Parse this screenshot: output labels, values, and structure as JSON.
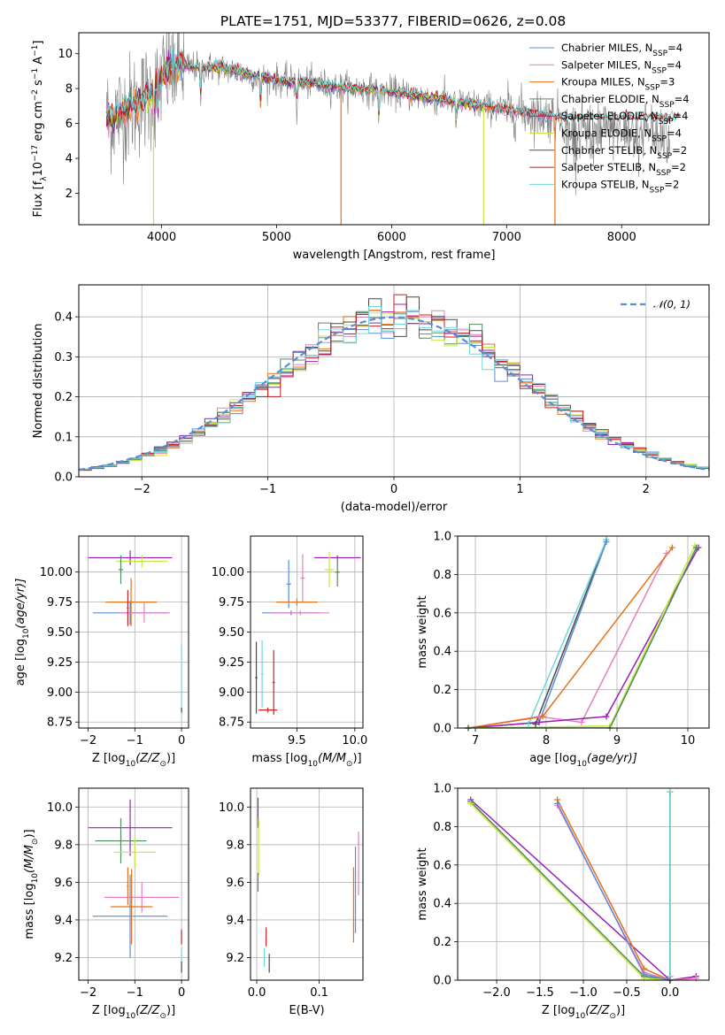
{
  "title": "PLATE=1751, MJD=53377, FIBERID=0626, z=0.08",
  "colors": {
    "chabrier_miles": "#5b8bd9",
    "salpeter_miles": "#e77fbf",
    "kroupa_miles": "#e8701a",
    "chabrier_elodie": "#4e8a5f",
    "salpeter_elodie": "#9b1fb5",
    "kroupa_elodie": "#c7e83a",
    "chabrier_stelib": "#4a4a4a",
    "salpeter_stelib": "#cc1f1f",
    "kroupa_stelib": "#6fd8d8",
    "normal_curve": "#5b8bd9"
  },
  "chart_data": [
    {
      "id": "spectrum",
      "type": "line",
      "xlabel": "wavelength [Angstrom, rest frame]",
      "ylabel": "Flux [f_λ 10^-17 erg cm^-2 s^-1 A^-1]",
      "ylabel_parts": {
        "a": "Flux [f",
        "b": "λ",
        "c": "10",
        "d": "−17",
        "e": " erg cm",
        "f": "−2",
        "g": " s",
        "h": "−1",
        "i": " A",
        "j": "−1",
        "k": "]"
      },
      "xlim": [
        3280,
        8760
      ],
      "ylim": [
        0.2,
        11.2
      ],
      "xticks": [
        4000,
        5000,
        6000,
        7000,
        8000
      ],
      "yticks": [
        2,
        4,
        6,
        8,
        10
      ],
      "grid": false,
      "legend_position": "top-right",
      "legend": [
        {
          "label": "Chabrier MILES, N",
          "sub": "SSP",
          "suffix": "=4",
          "color_key": "chabrier_miles"
        },
        {
          "label": "Salpeter MILES, N",
          "sub": "SSP",
          "suffix": "=4",
          "color_key": "salpeter_miles"
        },
        {
          "label": "Kroupa MILES, N",
          "sub": "SSP",
          "suffix": "=3",
          "color_key": "kroupa_miles"
        },
        {
          "label": "Chabrier ELODIE, N",
          "sub": "SSP",
          "suffix": "=4",
          "color_key": "chabrier_elodie"
        },
        {
          "label": "Salpeter ELODIE, N",
          "sub": "SSP",
          "suffix": "=4",
          "color_key": "salpeter_elodie"
        },
        {
          "label": "Kroupa ELODIE, N",
          "sub": "SSP",
          "suffix": "=4",
          "color_key": "kroupa_elodie"
        },
        {
          "label": "Chabrier STELIB, N",
          "sub": "SSP",
          "suffix": "=2",
          "color_key": "chabrier_stelib"
        },
        {
          "label": "Salpeter STELIB, N",
          "sub": "SSP",
          "suffix": "=2",
          "color_key": "salpeter_stelib"
        },
        {
          "label": "Kroupa STELIB, N",
          "sub": "SSP",
          "suffix": "=2",
          "color_key": "kroupa_stelib"
        }
      ],
      "continuum": [
        [
          3500,
          6.2
        ],
        [
          3700,
          6.8
        ],
        [
          3900,
          7.6
        ],
        [
          4000,
          8.6
        ],
        [
          4100,
          9.4
        ],
        [
          4300,
          9.2
        ],
        [
          4500,
          9.2
        ],
        [
          4700,
          8.9
        ],
        [
          4900,
          8.6
        ],
        [
          5100,
          8.4
        ],
        [
          5300,
          8.3
        ],
        [
          5500,
          8.1
        ],
        [
          5700,
          8.0
        ],
        [
          5900,
          7.9
        ],
        [
          6100,
          7.7
        ],
        [
          6300,
          7.5
        ],
        [
          6500,
          7.3
        ],
        [
          6700,
          7.1
        ],
        [
          6900,
          6.9
        ],
        [
          7100,
          6.7
        ],
        [
          7300,
          6.5
        ],
        [
          7500,
          6.3
        ]
      ],
      "dips": [
        {
          "x": 3930,
          "y": 0.2,
          "color_key": "kroupa_elodie"
        },
        {
          "x": 5560,
          "y": 0.2,
          "color_key": "kroupa_miles"
        },
        {
          "x": 6800,
          "y": 0.2,
          "color_key": "kroupa_elodie"
        },
        {
          "x": 7420,
          "y": 0.2,
          "color_key": "kroupa_miles"
        }
      ]
    },
    {
      "id": "residuals",
      "type": "line",
      "xlabel": "(data-model)/error",
      "ylabel": "Normed distribution",
      "xlim": [
        -2.5,
        2.5
      ],
      "ylim": [
        0,
        0.48
      ],
      "xticks": [
        -2,
        -1,
        0,
        1,
        2
      ],
      "yticks": [
        0.0,
        0.1,
        0.2,
        0.3,
        0.4
      ],
      "grid": true,
      "legend_position": "top-right",
      "legend_label": "𝒩(0, 1)",
      "bin_width": 0.1,
      "bin_start": -2.5
    },
    {
      "id": "age_vs_z",
      "type": "scatter",
      "xlabel": "Z [log10(Z/Z⊙)]",
      "xlabel_parts": {
        "a": "Z [log",
        "b": "10",
        "c": "(Z/Z",
        "d": "⊙",
        "e": ")]"
      },
      "ylabel": "age [log10(age/yr)]",
      "ylabel_parts": {
        "a": "age  [log",
        "b": "10",
        "c": "(age/yr)]"
      },
      "xlim": [
        -2.2,
        0.15
      ],
      "ylim": [
        8.7,
        10.3
      ],
      "xticks": [
        -2,
        -1,
        0
      ],
      "yticks": [
        8.75,
        9.0,
        9.25,
        9.5,
        9.75,
        10.0
      ],
      "ytick_labels": [
        "8.75",
        "9.00",
        "9.25",
        "9.50",
        "9.75",
        "10.00"
      ],
      "grid": true,
      "points": [
        {
          "x": -1.1,
          "y": 10.12,
          "xerr": 0.9,
          "yerr": 0.06,
          "color_key": "salpeter_elodie"
        },
        {
          "x": -0.85,
          "y": 10.09,
          "xerr": 0.55,
          "yerr": 0.05,
          "color_key": "kroupa_elodie"
        },
        {
          "x": -1.3,
          "y": 10.02,
          "xerr": 0.05,
          "yerr": 0.12,
          "color_key": "chabrier_elodie"
        },
        {
          "x": -1.08,
          "y": 9.75,
          "xerr": 0.55,
          "yerr": 0.2,
          "color_key": "kroupa_miles"
        },
        {
          "x": -1.1,
          "y": 9.66,
          "xerr": 0.8,
          "yerr": 0.1,
          "color_key": "chabrier_miles"
        },
        {
          "x": -0.8,
          "y": 9.66,
          "xerr": 0.55,
          "yerr": 0.08,
          "color_key": "salpeter_miles"
        },
        {
          "x": -1.15,
          "y": 9.7,
          "xerr": 0.02,
          "yerr": 0.15,
          "color_key": "salpeter_stelib"
        },
        {
          "x": 0.0,
          "y": 9.1,
          "xerr": 0.01,
          "yerr": 0.3,
          "color_key": "kroupa_stelib"
        },
        {
          "x": 0.0,
          "y": 8.85,
          "xerr": 0.01,
          "yerr": 0.02,
          "color_key": "chabrier_stelib"
        }
      ]
    },
    {
      "id": "age_vs_mass",
      "type": "scatter",
      "xlabel": "mass [log10(M/M⊙)]",
      "xlabel_parts": {
        "a": "mass [log",
        "b": "10",
        "c": "(M/M",
        "d": "⊙",
        "e": ")]"
      },
      "xlim": [
        9.1,
        10.07
      ],
      "ylim": [
        8.7,
        10.3
      ],
      "xticks": [
        9.5,
        10.0
      ],
      "xtick_labels": [
        "9.5",
        "10.0"
      ],
      "yticks": [
        8.75,
        9.0,
        9.25,
        9.5,
        9.75,
        10.0
      ],
      "ytick_labels": [
        "8.75",
        "9.00",
        "9.25",
        "9.50",
        "9.75",
        "10.00"
      ],
      "grid": true,
      "points": [
        {
          "x": 9.85,
          "y": 10.12,
          "xerr": 0.2,
          "yerr": 0.02,
          "color_key": "salpeter_elodie"
        },
        {
          "x": 9.78,
          "y": 10.02,
          "xerr": 0.04,
          "yerr": 0.15,
          "color_key": "kroupa_elodie"
        },
        {
          "x": 9.85,
          "y": 10.0,
          "xerr": 0.02,
          "yerr": 0.12,
          "color_key": "chabrier_elodie"
        },
        {
          "x": 9.43,
          "y": 9.9,
          "xerr": 0.02,
          "yerr": 0.2,
          "color_key": "chabrier_miles"
        },
        {
          "x": 9.55,
          "y": 9.95,
          "xerr": 0.02,
          "yerr": 0.2,
          "color_key": "salpeter_miles"
        },
        {
          "x": 9.5,
          "y": 9.75,
          "xerr": 0.18,
          "yerr": 0.03,
          "color_key": "kroupa_miles"
        },
        {
          "x": 9.45,
          "y": 9.66,
          "xerr": 0.25,
          "yerr": 0.02,
          "color_key": "chabrier_miles"
        },
        {
          "x": 9.53,
          "y": 9.66,
          "xerr": 0.25,
          "yerr": 0.02,
          "color_key": "salpeter_miles"
        },
        {
          "x": 9.3,
          "y": 9.08,
          "xerr": 0.01,
          "yerr": 0.27,
          "color_key": "salpeter_stelib"
        },
        {
          "x": 9.2,
          "y": 9.15,
          "xerr": 0.01,
          "yerr": 0.28,
          "color_key": "kroupa_stelib"
        },
        {
          "x": 9.15,
          "y": 9.12,
          "xerr": 0.01,
          "yerr": 0.3,
          "color_key": "chabrier_stelib"
        },
        {
          "x": 9.25,
          "y": 8.85,
          "xerr": 0.08,
          "yerr": 0.02,
          "color_key": "salpeter_stelib"
        }
      ]
    },
    {
      "id": "weight_vs_age",
      "type": "line",
      "xlabel": "age [log10(age/yr)]",
      "xlabel_parts": {
        "a": "age  [log",
        "b": "10",
        "c": "(age/yr)]"
      },
      "ylabel": "mass weight",
      "xlim": [
        6.75,
        10.3
      ],
      "ylim": [
        0.0,
        1.0
      ],
      "xticks": [
        7,
        8,
        9,
        10
      ],
      "yticks": [
        0.0,
        0.2,
        0.4,
        0.6,
        0.8,
        1.0
      ],
      "ytick_labels": [
        "0.0",
        "0.2",
        "0.4",
        "0.6",
        "0.8",
        "1.0"
      ],
      "grid": true,
      "series": [
        {
          "color_key": "chabrier_stelib",
          "x": [
            7.85,
            8.85
          ],
          "y": [
            0.02,
            0.98
          ]
        },
        {
          "color_key": "kroupa_stelib",
          "x": [
            7.75,
            8.85
          ],
          "y": [
            0.02,
            0.98
          ]
        },
        {
          "color_key": "chabrier_miles",
          "x": [
            6.9,
            7.9,
            8.85
          ],
          "y": [
            0.0,
            0.03,
            0.97
          ]
        },
        {
          "color_key": "salpeter_miles",
          "x": [
            6.9,
            7.9,
            8.5,
            9.7
          ],
          "y": [
            0.0,
            0.06,
            0.03,
            0.91
          ]
        },
        {
          "color_key": "kroupa_miles",
          "x": [
            6.9,
            7.95,
            9.78
          ],
          "y": [
            0.0,
            0.06,
            0.94
          ]
        },
        {
          "color_key": "salpeter_elodie",
          "x": [
            6.9,
            7.9,
            8.85,
            10.15
          ],
          "y": [
            0.0,
            0.03,
            0.06,
            0.94
          ]
        },
        {
          "color_key": "kroupa_elodie",
          "x": [
            6.9,
            8.9,
            10.1
          ],
          "y": [
            0.0,
            0.01,
            0.95
          ]
        },
        {
          "color_key": "chabrier_elodie",
          "x": [
            6.9,
            8.9,
            10.12
          ],
          "y": [
            0.0,
            0.0,
            0.94
          ]
        }
      ]
    },
    {
      "id": "mass_vs_z",
      "type": "scatter",
      "xlabel": "Z [log10(Z/Z⊙)]",
      "xlabel_parts": {
        "a": "Z [log",
        "b": "10",
        "c": "(Z/Z",
        "d": "⊙",
        "e": ")]"
      },
      "ylabel": "mass [log10(M/M⊙)]",
      "ylabel_parts": {
        "a": "mass [log",
        "b": "10",
        "c": "(M/M",
        "d": "⊙",
        "e": ")]"
      },
      "xlim": [
        -2.2,
        0.15
      ],
      "ylim": [
        9.08,
        10.1
      ],
      "xticks": [
        -2,
        -1,
        0
      ],
      "yticks": [
        9.2,
        9.4,
        9.6,
        9.8,
        10.0
      ],
      "ytick_labels": [
        "9.2",
        "9.4",
        "9.6",
        "9.8",
        "10.0"
      ],
      "grid": true,
      "points": [
        {
          "x": -1.1,
          "y": 9.89,
          "xerr": 0.9,
          "yerr": 0.15,
          "color_key": "salpeter_elodie"
        },
        {
          "x": -1.3,
          "y": 9.82,
          "xerr": 0.55,
          "yerr": 0.12,
          "color_key": "chabrier_elodie"
        },
        {
          "x": -1.0,
          "y": 9.76,
          "xerr": 0.45,
          "yerr": 0.08,
          "color_key": "kroupa_elodie"
        },
        {
          "x": -1.15,
          "y": 9.58,
          "xerr": 0.02,
          "yerr": 0.1,
          "color_key": "kroupa_miles"
        },
        {
          "x": -0.85,
          "y": 9.52,
          "xerr": 0.8,
          "yerr": 0.08,
          "color_key": "salpeter_miles"
        },
        {
          "x": -1.07,
          "y": 9.47,
          "xerr": 0.45,
          "yerr": 0.2,
          "color_key": "kroupa_miles"
        },
        {
          "x": -1.1,
          "y": 9.42,
          "xerr": 0.8,
          "yerr": 0.22,
          "color_key": "chabrier_miles"
        },
        {
          "x": 0.0,
          "y": 9.31,
          "xerr": 0.01,
          "yerr": 0.04,
          "color_key": "salpeter_stelib"
        },
        {
          "x": 0.0,
          "y": 9.2,
          "xerr": 0.01,
          "yerr": 0.05,
          "color_key": "kroupa_stelib"
        },
        {
          "x": 0.0,
          "y": 9.15,
          "xerr": 0.01,
          "yerr": 0.03,
          "color_key": "chabrier_stelib"
        }
      ]
    },
    {
      "id": "mass_vs_ebv",
      "type": "scatter",
      "xlabel": "E(B-V)",
      "xlim": [
        -0.01,
        0.17
      ],
      "ylim": [
        9.08,
        10.1
      ],
      "xticks": [
        0.0,
        0.1
      ],
      "xtick_labels": [
        "0.0",
        "0.1"
      ],
      "yticks": [
        9.2,
        9.4,
        9.6,
        9.8,
        10.0
      ],
      "ytick_labels": [
        "9.2",
        "9.4",
        "9.6",
        "9.8",
        "10.0"
      ],
      "grid": true,
      "points": [
        {
          "x": 0.002,
          "y": 9.97,
          "xerr": 0,
          "yerr": 0.08,
          "color_key": "salpeter_elodie"
        },
        {
          "x": 0.003,
          "y": 9.79,
          "xerr": 0,
          "yerr": 0.15,
          "color_key": "kroupa_elodie"
        },
        {
          "x": 0.002,
          "y": 9.6,
          "xerr": 0,
          "yerr": 0.05,
          "color_key": "chabrier_elodie"
        },
        {
          "x": 0.015,
          "y": 9.31,
          "xerr": 0,
          "yerr": 0.05,
          "color_key": "salpeter_stelib"
        },
        {
          "x": 0.012,
          "y": 9.2,
          "xerr": 0,
          "yerr": 0.05,
          "color_key": "kroupa_stelib"
        },
        {
          "x": 0.02,
          "y": 9.17,
          "xerr": 0,
          "yerr": 0.05,
          "color_key": "chabrier_stelib"
        },
        {
          "x": 0.158,
          "y": 9.56,
          "xerr": 0,
          "yerr": 0.23,
          "color_key": "chabrier_miles"
        },
        {
          "x": 0.155,
          "y": 9.48,
          "xerr": 0,
          "yerr": 0.2,
          "color_key": "kroupa_miles"
        },
        {
          "x": 0.163,
          "y": 9.7,
          "xerr": 0,
          "yerr": 0.17,
          "color_key": "salpeter_miles"
        }
      ]
    },
    {
      "id": "weight_vs_z",
      "type": "line",
      "xlabel": "Z [log10(Z/Z⊙)]",
      "xlabel_parts": {
        "a": "Z [log",
        "b": "10",
        "c": "(Z/Z",
        "d": "⊙",
        "e": ")]"
      },
      "ylabel": "mass weight",
      "xlim": [
        -2.45,
        0.45
      ],
      "ylim": [
        0.0,
        1.0
      ],
      "xticks": [
        -2.0,
        -1.5,
        -1.0,
        -0.5,
        0.0
      ],
      "xtick_labels": [
        "−2.0",
        "−1.5",
        "−1.0",
        "−0.5",
        "0.0"
      ],
      "yticks": [
        0.0,
        0.2,
        0.4,
        0.6,
        0.8,
        1.0
      ],
      "ytick_labels": [
        "0.0",
        "0.2",
        "0.4",
        "0.6",
        "0.8",
        "1.0"
      ],
      "grid": true,
      "series": [
        {
          "color_key": "chabrier_stelib",
          "x": [
            0.0,
            0.0
          ],
          "y": [
            0.02,
            0.98
          ]
        },
        {
          "color_key": "kroupa_stelib",
          "x": [
            0.0,
            0.0
          ],
          "y": [
            0.02,
            0.98
          ]
        },
        {
          "color_key": "salpeter_elodie",
          "x": [
            -2.3,
            0.0,
            0.3
          ],
          "y": [
            0.94,
            0.0,
            0.02
          ]
        },
        {
          "color_key": "chabrier_elodie",
          "x": [
            -2.3,
            -0.3,
            0.0
          ],
          "y": [
            0.93,
            0.02,
            0.0
          ]
        },
        {
          "color_key": "kroupa_elodie",
          "x": [
            -2.3,
            -0.3,
            0.0
          ],
          "y": [
            0.92,
            0.01,
            0.0
          ]
        },
        {
          "color_key": "kroupa_miles",
          "x": [
            -1.3,
            -0.3,
            0.0
          ],
          "y": [
            0.94,
            0.06,
            0.0
          ]
        },
        {
          "color_key": "salpeter_miles",
          "x": [
            -1.3,
            -0.3,
            0.0,
            0.3
          ],
          "y": [
            0.91,
            0.04,
            0.0,
            0.01
          ]
        },
        {
          "color_key": "chabrier_miles",
          "x": [
            -1.3,
            -0.3,
            0.0
          ],
          "y": [
            0.92,
            0.03,
            0.0
          ]
        }
      ]
    }
  ]
}
